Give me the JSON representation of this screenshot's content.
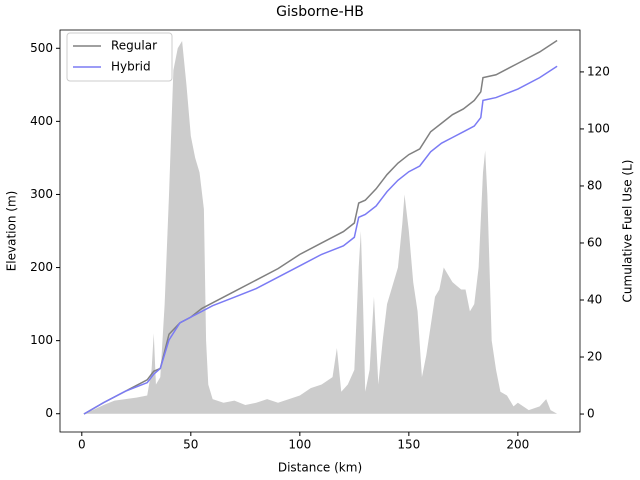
{
  "chart_data": {
    "type": "line",
    "title": "Gisborne-HB",
    "xlabel": "Distance (km)",
    "ylabel": "Elevation (m)",
    "y2label": "Cumulative Fuel Use (L)",
    "xlim": [
      -10,
      228.5
    ],
    "xticks": [
      0,
      50,
      100,
      150,
      200
    ],
    "ylim": [
      -25,
      525
    ],
    "yticks": [
      0,
      100,
      200,
      300,
      400,
      500
    ],
    "y2lim": [
      -6.3,
      134.7
    ],
    "y2ticks": [
      0,
      20,
      40,
      60,
      80,
      100,
      120
    ],
    "legend": "upper left",
    "elevation": {
      "color": "#cccccc",
      "x": [
        1,
        5,
        10,
        15,
        20,
        25,
        30,
        32,
        33,
        34,
        36,
        38,
        40,
        42,
        44,
        46,
        48,
        50,
        52,
        54,
        56,
        57,
        58,
        60,
        65,
        70,
        75,
        80,
        85,
        90,
        95,
        100,
        105,
        110,
        115,
        117,
        119,
        122,
        125,
        127,
        128,
        129,
        130,
        132,
        134,
        136,
        138,
        140,
        142,
        145,
        147,
        148,
        150,
        152,
        154,
        156,
        158,
        160,
        162,
        164,
        166,
        168,
        170,
        172,
        174,
        176,
        178,
        180,
        182,
        184,
        185,
        186,
        188,
        190,
        192,
        195,
        198,
        200,
        205,
        210,
        213,
        215,
        218
      ],
      "values": [
        0,
        5,
        12,
        18,
        20,
        22,
        25,
        60,
        110,
        40,
        50,
        150,
        300,
        470,
        500,
        510,
        450,
        380,
        350,
        330,
        280,
        100,
        40,
        20,
        15,
        18,
        12,
        15,
        20,
        15,
        20,
        25,
        35,
        40,
        50,
        90,
        30,
        40,
        60,
        200,
        250,
        150,
        30,
        60,
        160,
        40,
        100,
        150,
        170,
        200,
        260,
        300,
        250,
        180,
        140,
        50,
        80,
        120,
        160,
        170,
        200,
        190,
        180,
        175,
        170,
        170,
        140,
        150,
        200,
        330,
        360,
        300,
        100,
        60,
        30,
        25,
        10,
        15,
        5,
        10,
        20,
        5,
        0
      ]
    },
    "series": [
      {
        "name": "Regular",
        "color": "#808080",
        "axis": "y2",
        "x": [
          1,
          10,
          20,
          30,
          33,
          36,
          40,
          45,
          50,
          55,
          60,
          70,
          80,
          90,
          100,
          110,
          120,
          125,
          127,
          130,
          135,
          140,
          145,
          150,
          155,
          160,
          165,
          170,
          175,
          180,
          183,
          184,
          190,
          200,
          210,
          218
        ],
        "values": [
          0,
          4,
          8,
          12,
          15,
          16,
          28,
          32,
          34,
          37,
          39,
          43,
          47,
          51,
          56,
          60,
          64,
          67,
          74,
          75,
          79,
          84,
          88,
          91,
          93,
          99,
          102,
          105,
          107,
          110,
          113,
          118,
          119,
          123,
          127,
          131
        ]
      },
      {
        "name": "Hybrid",
        "color": "#7b7bf4",
        "axis": "y2",
        "x": [
          1,
          10,
          20,
          30,
          33,
          36,
          40,
          45,
          50,
          55,
          60,
          70,
          80,
          90,
          100,
          110,
          120,
          125,
          127,
          130,
          135,
          140,
          145,
          150,
          155,
          160,
          165,
          170,
          175,
          180,
          183,
          184,
          190,
          200,
          210,
          218
        ],
        "values": [
          0,
          4,
          8,
          11,
          14,
          16,
          26,
          32,
          34,
          36,
          38,
          41,
          44,
          48,
          52,
          56,
          59,
          62,
          69,
          70,
          73,
          78,
          82,
          85,
          87,
          92,
          95,
          97,
          99,
          101,
          104,
          110,
          111,
          114,
          118,
          122
        ]
      }
    ]
  }
}
